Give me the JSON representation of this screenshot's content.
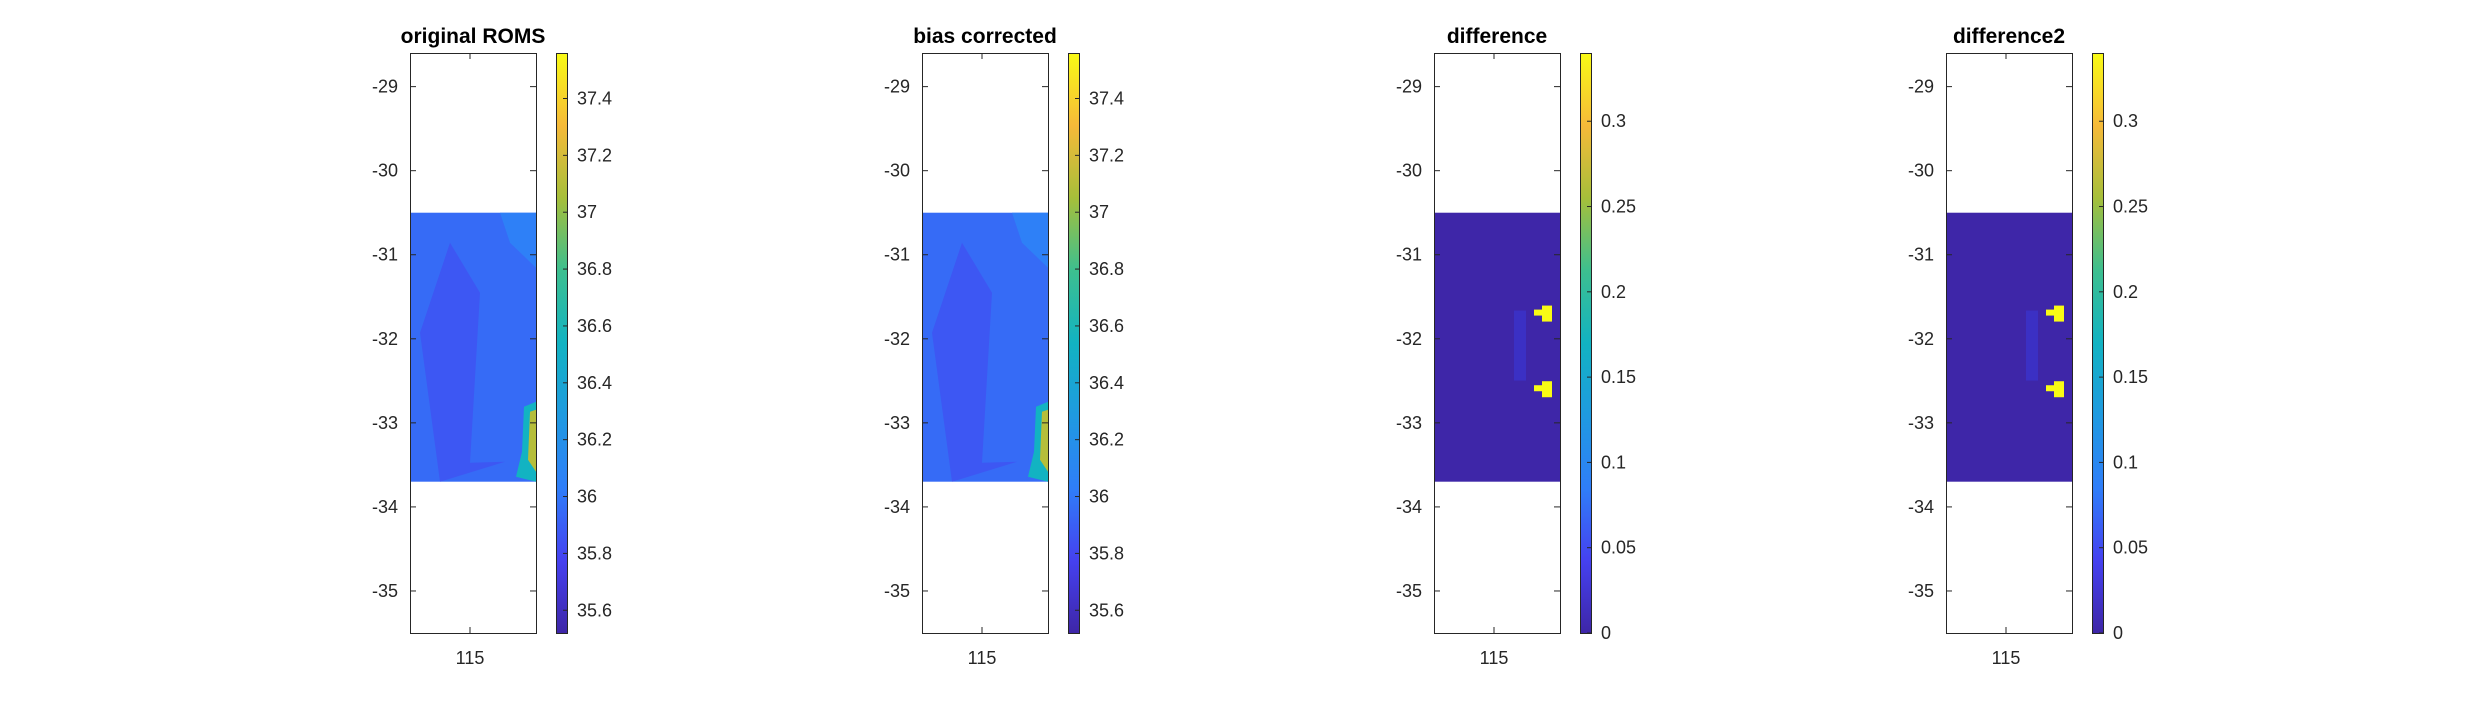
{
  "chart_data": [
    {
      "type": "heatmap",
      "title": "original ROMS",
      "colormap": "parula",
      "ylim": [
        -35.5,
        -28.6
      ],
      "y_ticks": [
        "-29",
        "-30",
        "-31",
        "-32",
        "-33",
        "-34",
        "-35"
      ],
      "x_ticks": [
        "115"
      ],
      "data_ylim": [
        -33.7,
        -30.5
      ],
      "clim": [
        35.52,
        37.56
      ],
      "colorbar_ticks": [
        "35.6",
        "35.8",
        "36",
        "36.2",
        "36.4",
        "36.6",
        "36.8",
        "37",
        "37.2",
        "37.4"
      ],
      "field": {
        "background": 35.95,
        "patches": [
          {
            "value": 35.8,
            "region": "western shelf"
          },
          {
            "value": 36.05,
            "region": "north-east edge"
          },
          {
            "value": 37.1,
            "region": "south-east coast"
          }
        ]
      }
    },
    {
      "type": "heatmap",
      "title": "bias corrected",
      "colormap": "parula",
      "ylim": [
        -35.5,
        -28.6
      ],
      "y_ticks": [
        "-29",
        "-30",
        "-31",
        "-32",
        "-33",
        "-34",
        "-35"
      ],
      "x_ticks": [
        "115"
      ],
      "data_ylim": [
        -33.7,
        -30.5
      ],
      "clim": [
        35.52,
        37.56
      ],
      "colorbar_ticks": [
        "35.6",
        "35.8",
        "36",
        "36.2",
        "36.4",
        "36.6",
        "36.8",
        "37",
        "37.2",
        "37.4"
      ],
      "field": {
        "background": 35.95,
        "patches": [
          {
            "value": 35.8,
            "region": "western shelf"
          },
          {
            "value": 36.05,
            "region": "north-east edge"
          },
          {
            "value": 37.1,
            "region": "south-east coast"
          }
        ]
      }
    },
    {
      "type": "heatmap",
      "title": "difference",
      "colormap": "parula",
      "ylim": [
        -35.5,
        -28.6
      ],
      "y_ticks": [
        "-29",
        "-30",
        "-31",
        "-32",
        "-33",
        "-34",
        "-35"
      ],
      "x_ticks": [
        "115"
      ],
      "data_ylim": [
        -33.7,
        -30.5
      ],
      "clim": [
        0,
        0.34
      ],
      "colorbar_ticks": [
        "0",
        "0.05",
        "0.1",
        "0.15",
        "0.2",
        "0.25",
        "0.3"
      ],
      "field": {
        "background": 0,
        "patches": [
          {
            "value": 0.34,
            "region": "around -31.7"
          },
          {
            "value": 0.34,
            "region": "around -32.6"
          }
        ]
      }
    },
    {
      "type": "heatmap",
      "title": "difference2",
      "colormap": "parula",
      "ylim": [
        -35.5,
        -28.6
      ],
      "y_ticks": [
        "-29",
        "-30",
        "-31",
        "-32",
        "-33",
        "-34",
        "-35"
      ],
      "x_ticks": [
        "115"
      ],
      "data_ylim": [
        -33.7,
        -30.5
      ],
      "clim": [
        0,
        0.34
      ],
      "colorbar_ticks": [
        "0",
        "0.05",
        "0.1",
        "0.15",
        "0.2",
        "0.25",
        "0.3"
      ],
      "field": {
        "background": 0,
        "patches": [
          {
            "value": 0.34,
            "region": "around -31.7"
          },
          {
            "value": 0.34,
            "region": "around -32.6"
          }
        ]
      }
    }
  ]
}
